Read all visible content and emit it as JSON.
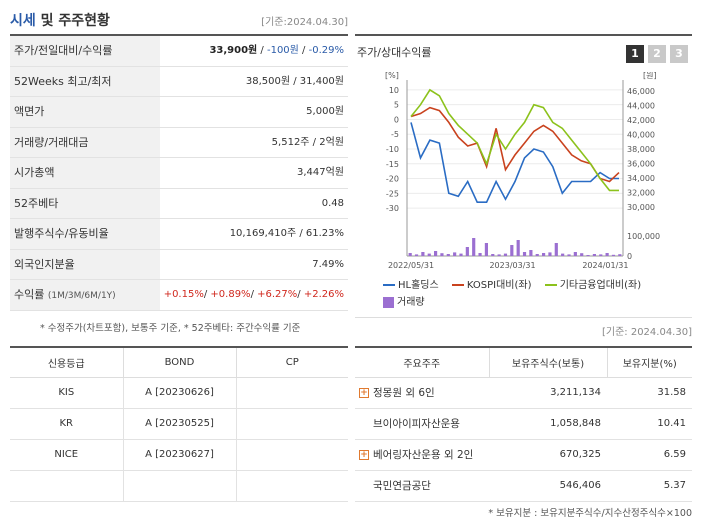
{
  "header": {
    "title_part1": "시세",
    "title_part2": " 및 주주현황",
    "date": "[기준:2024.04.30]"
  },
  "snapshot": {
    "rows": [
      {
        "label": "주가/전일대비/수익률",
        "price": "33,900원",
        "change": "-100원",
        "rate": "-0.29%"
      },
      {
        "label": "52Weeks 최고/최저",
        "value": "38,500원 / 31,400원"
      },
      {
        "label": "액면가",
        "value": "5,000원"
      },
      {
        "label": "거래량/거래대금",
        "value": "5,512주 / 2억원"
      },
      {
        "label": "시가총액",
        "value": "3,447억원"
      },
      {
        "label": "52주베타",
        "value": "0.48"
      },
      {
        "label": "발행주식수/유동비율",
        "value": "10,169,410주 / 61.23%"
      },
      {
        "label": "외국인지분율",
        "value": "7.49%"
      },
      {
        "label": "수익률",
        "label_sub": "(1M/3M/6M/1Y)",
        "r1": "+0.15%",
        "r2": "+0.89%",
        "r3": "+6.27%",
        "r4": "+2.26%"
      }
    ],
    "note": "* 수정주가(차트포함), 보통주 기준, * 52주베타: 주간수익률 기준"
  },
  "chart_panel": {
    "title": "주가/상대수익률",
    "tabs": [
      "1",
      "2",
      "3"
    ],
    "active_tab": "1",
    "legend": {
      "s1": "HL홀딩스",
      "s2": "KOSPI대비(좌)",
      "s3": "기타금융업대비(좌)",
      "s4": "거래량"
    },
    "date": "[기준: 2024.04.30]"
  },
  "chart_data": {
    "type": "line",
    "left_axis": {
      "unit": "[%]",
      "ticks": [
        "10",
        "5",
        "0",
        "-5",
        "-10",
        "-15",
        "-20",
        "-25",
        "-30"
      ],
      "range": [
        -32,
        12
      ]
    },
    "right_axis": {
      "unit": "[원]",
      "ticks": [
        "46,000",
        "44,000",
        "42,000",
        "40,000",
        "38,000",
        "36,000",
        "34,000",
        "32,000",
        "30,000"
      ],
      "range": [
        29000,
        47000
      ]
    },
    "volume_axis": {
      "ticks": [
        "100,000",
        "0"
      ],
      "range": [
        0,
        120000
      ]
    },
    "x_labels": [
      "2022/05/31",
      "2023/03/31",
      "2024/01/31"
    ],
    "series": [
      {
        "name": "HL홀딩스",
        "color": "#2a6cc4",
        "axis": "left",
        "values": [
          -1,
          -13,
          -7,
          -8,
          -25,
          -26,
          -21,
          -28,
          -28,
          -21,
          -27,
          -21,
          -13,
          -10,
          -11,
          -16,
          -25,
          -21,
          -21,
          -21,
          -18,
          -20,
          -20
        ]
      },
      {
        "name": "KOSPI대비(좌)",
        "color": "#c9421e",
        "axis": "left",
        "values": [
          1,
          2,
          4,
          3,
          -1,
          -6,
          -9,
          -8,
          -16,
          -3,
          -17,
          -12,
          -8,
          -4,
          -2,
          -4,
          -8,
          -12,
          -14,
          -15,
          -20,
          -21,
          -18
        ]
      },
      {
        "name": "기타금융업대비(좌)",
        "color": "#8cc21c",
        "axis": "left",
        "values": [
          1,
          5,
          10,
          8,
          2,
          -2,
          -5,
          -8,
          -15,
          -5,
          -10,
          -5,
          -1,
          5,
          4,
          -1,
          -3,
          -7,
          -11,
          -15,
          -20,
          -24,
          -24
        ]
      },
      {
        "name": "거래량",
        "color": "#9b6fd1",
        "type": "bar",
        "values": [
          15000,
          8000,
          20000,
          12000,
          25000,
          14000,
          10000,
          18000,
          12000,
          45000,
          90000,
          15000,
          65000,
          10000,
          8000,
          12000,
          55000,
          80000,
          20000,
          30000,
          10000,
          15000,
          18000,
          65000,
          12000,
          8000,
          20000,
          14000,
          5000,
          10000,
          8000,
          15000,
          6000,
          9000
        ]
      }
    ]
  },
  "credit": {
    "headers": [
      "신용등급",
      "BOND",
      "CP"
    ],
    "rows": [
      [
        "KIS",
        "A [20230626]",
        ""
      ],
      [
        "KR",
        "A [20230525]",
        ""
      ],
      [
        "NICE",
        "A [20230627]",
        ""
      ],
      [
        "",
        "",
        ""
      ]
    ]
  },
  "holders": {
    "headers": [
      "주요주주",
      "보유주식수(보통)",
      "보유지분(%)"
    ],
    "rows": [
      {
        "name": "정몽원 외 6인",
        "shares": "3,211,134",
        "pct": "31.58",
        "expand": true
      },
      {
        "name": "브이아이피자산운용",
        "shares": "1,058,848",
        "pct": "10.41",
        "expand": false
      },
      {
        "name": "베어링자산운용 외 2인",
        "shares": "670,325",
        "pct": "6.59",
        "expand": true
      },
      {
        "name": "국민연금공단",
        "shares": "546,406",
        "pct": "5.37",
        "expand": false
      }
    ],
    "note": "* 보유지분 : 보유지분주식수/지수산정주식수×100"
  }
}
